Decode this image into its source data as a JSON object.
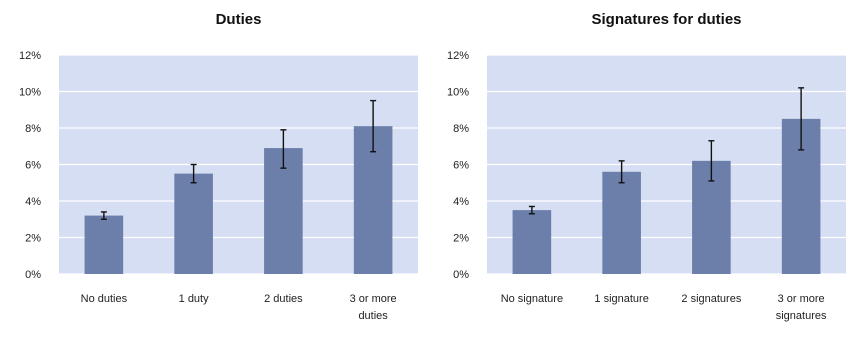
{
  "chart_data": [
    {
      "type": "bar",
      "title": "Duties",
      "categories": [
        [
          "No duties"
        ],
        [
          "1 duty"
        ],
        [
          "2 duties"
        ],
        [
          "3 or more",
          "duties"
        ]
      ],
      "values": [
        3.2,
        5.5,
        6.9,
        8.1
      ],
      "error_low": [
        3.0,
        5.0,
        5.8,
        6.7
      ],
      "error_high": [
        3.4,
        6.0,
        7.9,
        9.5
      ],
      "yticks": [
        "0%",
        "2%",
        "4%",
        "6%",
        "8%",
        "10%",
        "12%"
      ],
      "ylim": [
        0,
        12
      ],
      "grid": true,
      "bar_color": "#6b7faa",
      "plot_bg": "#d5def2"
    },
    {
      "type": "bar",
      "title": "Signatures for duties",
      "categories": [
        [
          "No signature"
        ],
        [
          "1 signature"
        ],
        [
          "2 signatures"
        ],
        [
          "3 or more",
          "signatures"
        ]
      ],
      "values": [
        3.5,
        5.6,
        6.2,
        8.5
      ],
      "error_low": [
        3.3,
        5.0,
        5.1,
        6.8
      ],
      "error_high": [
        3.7,
        6.2,
        7.3,
        10.2
      ],
      "yticks": [
        "0%",
        "2%",
        "4%",
        "6%",
        "8%",
        "10%",
        "12%"
      ],
      "ylim": [
        0,
        12
      ],
      "grid": true,
      "bar_color": "#6b7faa",
      "plot_bg": "#d5def2"
    }
  ]
}
